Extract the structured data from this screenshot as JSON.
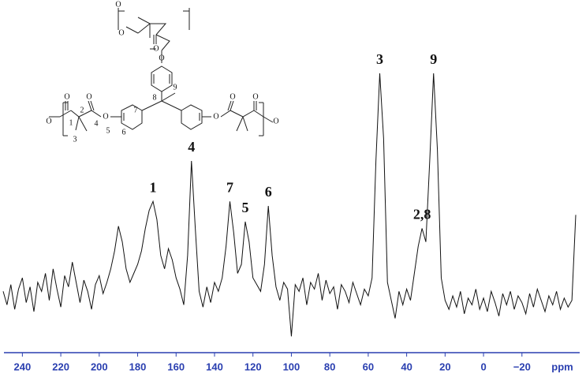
{
  "chart_data": {
    "type": "line",
    "x_label": "ppm",
    "xlim": [
      250,
      -48
    ],
    "ylim": [
      -20,
      100
    ],
    "xticks": [
      240,
      220,
      200,
      180,
      160,
      140,
      120,
      100,
      80,
      60,
      40,
      20,
      0,
      {
        "value": -20,
        "label": "−20"
      }
    ],
    "axis_color": "#2a3fb0",
    "series": [
      {
        "color": "#111111",
        "x": [
          250,
          248,
          246,
          244,
          242,
          240,
          238,
          236,
          234,
          232,
          230,
          228,
          226,
          224,
          222,
          220,
          218,
          216,
          214,
          212,
          210,
          208,
          206,
          204,
          202,
          200,
          198,
          196,
          194,
          192,
          190,
          188,
          186,
          184,
          182,
          180,
          178,
          176,
          174,
          172,
          170,
          168,
          166,
          164,
          162,
          160,
          158,
          156,
          154,
          152,
          150,
          148,
          146,
          144,
          142,
          140,
          138,
          136,
          134,
          132,
          130,
          128,
          126,
          124,
          122,
          120,
          118,
          116,
          114,
          112,
          110,
          108,
          106,
          104,
          102,
          100,
          98,
          96,
          94,
          92,
          90,
          88,
          86,
          84,
          82,
          80,
          78,
          76,
          74,
          72,
          70,
          68,
          66,
          64,
          62,
          60,
          58,
          56,
          54,
          52,
          50,
          48,
          46,
          44,
          42,
          40,
          38,
          36,
          34,
          32,
          30,
          28,
          26,
          24,
          22,
          20,
          18,
          16,
          14,
          12,
          10,
          8,
          6,
          4,
          2,
          0,
          -2,
          -4,
          -6,
          -8,
          -10,
          -12,
          -14,
          -16,
          -18,
          -20,
          -22,
          -24,
          -26,
          -28,
          -30,
          -32,
          -34,
          -36,
          -38,
          -40,
          -42,
          -44,
          -46,
          -48
        ],
        "values": [
          2,
          -4,
          5,
          -6,
          3,
          8,
          -3,
          4,
          -7,
          6,
          2,
          10,
          -2,
          12,
          3,
          -5,
          9,
          4,
          15,
          6,
          -3,
          7,
          2,
          -6,
          5,
          9,
          1,
          6,
          12,
          20,
          31,
          24,
          12,
          6,
          10,
          14,
          20,
          30,
          38,
          42,
          34,
          18,
          12,
          21,
          16,
          8,
          3,
          -4,
          18,
          60,
          30,
          2,
          -5,
          4,
          -3,
          6,
          2,
          8,
          22,
          42,
          28,
          10,
          14,
          33,
          24,
          8,
          5,
          2,
          14,
          40,
          18,
          4,
          -2,
          6,
          3,
          -18,
          5,
          2,
          8,
          -4,
          6,
          3,
          10,
          -2,
          7,
          1,
          4,
          -6,
          5,
          2,
          -3,
          6,
          1,
          -4,
          3,
          0,
          8,
          60,
          99,
          70,
          6,
          -2,
          -10,
          2,
          -4,
          3,
          -2,
          10,
          22,
          30,
          24,
          60,
          99,
          65,
          8,
          -2,
          -6,
          0,
          -5,
          2,
          -8,
          -1,
          -4,
          3,
          -6,
          -1,
          -7,
          2,
          -3,
          -9,
          1,
          -4,
          2,
          -6,
          0,
          -3,
          -8,
          1,
          -5,
          3,
          -2,
          -7,
          0,
          -4,
          2,
          -6,
          -1,
          -5,
          -2,
          36
        ]
      }
    ],
    "annotations": [
      {
        "text": "1",
        "x": 172
      },
      {
        "text": "4",
        "x": 152
      },
      {
        "text": "7",
        "x": 132
      },
      {
        "text": "5",
        "x": 124
      },
      {
        "text": "6",
        "x": 112
      },
      {
        "text": "3",
        "x": 54
      },
      {
        "text": "2,8",
        "x": 32
      },
      {
        "text": "9",
        "x": 26
      }
    ],
    "structure": {
      "atom_numbers": [
        "1",
        "2",
        "3",
        "4",
        "5",
        "6",
        "7",
        "8",
        "9"
      ],
      "oxygen": "O"
    }
  }
}
